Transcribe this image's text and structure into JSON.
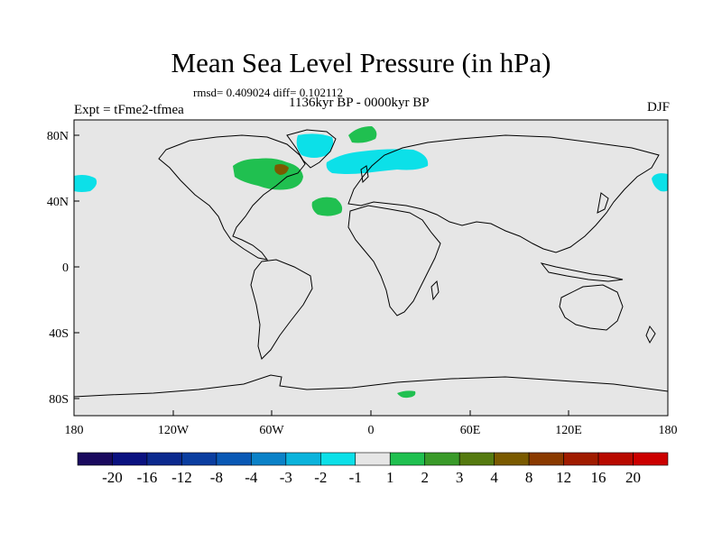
{
  "title": "Mean Sea Level Pressure (in hPa)",
  "stats": "rmsd= 0.409024 diff= 0.102112",
  "period": "1136kyr BP - 0000kyr BP",
  "experiment": "Expt = tFme2-tfmea",
  "season": "DJF",
  "lat_labels": [
    "80N",
    "40N",
    "0",
    "40S",
    "80S"
  ],
  "lon_labels": [
    "180",
    "120W",
    "60W",
    "0",
    "60E",
    "120E",
    "180"
  ],
  "colorbar": {
    "labels": [
      "-20",
      "-16",
      "-12",
      "-8",
      "-4",
      "-3",
      "-2",
      "-1",
      "1",
      "2",
      "3",
      "4",
      "8",
      "12",
      "16",
      "20"
    ],
    "colors": [
      "#1a0a5e",
      "#0b1280",
      "#0c2a8e",
      "#0b3ea0",
      "#0a59b5",
      "#0b82c8",
      "#0bb3dc",
      "#0ce0e8",
      "#e6e6e6",
      "#20c050",
      "#3a9a2a",
      "#557a10",
      "#7a5a00",
      "#8a3a00",
      "#a01c00",
      "#b80a00",
      "#cc0000"
    ]
  },
  "colors": {
    "background": "#e6e6e6",
    "neg_light": "#0ce0e8",
    "pos_light": "#20c050",
    "pos_strong": "#7a5a00"
  }
}
